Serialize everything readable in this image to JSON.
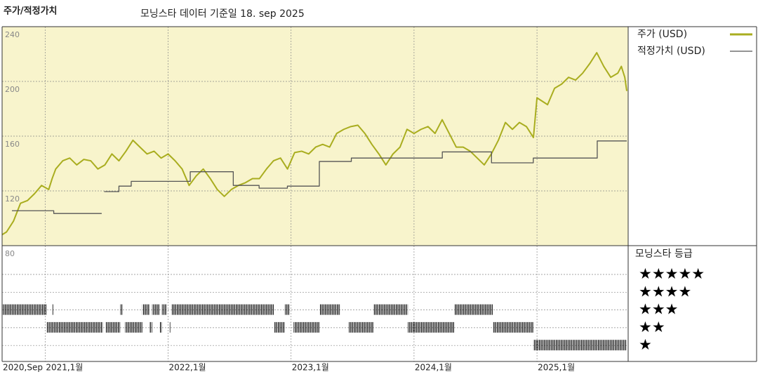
{
  "chart_data": {
    "type": "line",
    "title": "주가/적정가치",
    "subtitle": "모닝스타 데이터 기준일 18. sep 2025",
    "xlim": [
      2020.65,
      2025.73
    ],
    "xticks": [
      {
        "value": 2020.65,
        "label": "2020,Sep"
      },
      {
        "value": 2021,
        "label": "2021,1월"
      },
      {
        "value": 2022,
        "label": "2022,1월"
      },
      {
        "value": 2023,
        "label": "2023,1월"
      },
      {
        "value": 2024,
        "label": "2024,1월"
      },
      {
        "value": 2025,
        "label": "2025,1월"
      }
    ],
    "ylim": [
      80,
      240
    ],
    "yticks": [
      80,
      120,
      160,
      200,
      240
    ],
    "grid": true,
    "series": [
      {
        "name": "주가 (USD)",
        "color": "#a9ad1f",
        "x": [
          2020.65,
          2020.686,
          2020.743,
          2020.8,
          2020.857,
          2020.914,
          2020.971,
          2021.029,
          2021.057,
          2021.086,
          2021.143,
          2021.2,
          2021.257,
          2021.314,
          2021.371,
          2021.429,
          2021.486,
          2021.543,
          2021.6,
          2021.657,
          2021.714,
          2021.771,
          2021.829,
          2021.886,
          2021.943,
          2022.0,
          2022.057,
          2022.114,
          2022.171,
          2022.229,
          2022.286,
          2022.343,
          2022.4,
          2022.457,
          2022.514,
          2022.571,
          2022.629,
          2022.686,
          2022.743,
          2022.8,
          2022.857,
          2022.914,
          2022.971,
          2023.029,
          2023.086,
          2023.143,
          2023.2,
          2023.257,
          2023.314,
          2023.371,
          2023.429,
          2023.486,
          2023.543,
          2023.6,
          2023.657,
          2023.714,
          2023.771,
          2023.829,
          2023.886,
          2023.943,
          2024.0,
          2024.057,
          2024.114,
          2024.171,
          2024.229,
          2024.286,
          2024.343,
          2024.4,
          2024.457,
          2024.514,
          2024.571,
          2024.629,
          2024.686,
          2024.743,
          2024.8,
          2024.857,
          2024.914,
          2024.971,
          2025.0,
          2025.086,
          2025.143,
          2025.2,
          2025.257,
          2025.314,
          2025.371,
          2025.429,
          2025.486,
          2025.543,
          2025.6,
          2025.657,
          2025.686,
          2025.714,
          2025.73
        ],
        "values": [
          88,
          90,
          98,
          111,
          113,
          118,
          124,
          121,
          129,
          136,
          142,
          144,
          139,
          143,
          142,
          136,
          139,
          147,
          142,
          149,
          157,
          152,
          147,
          149,
          144,
          147,
          142,
          136,
          124,
          131,
          136,
          129,
          121,
          116,
          121,
          124,
          126,
          129,
          129,
          136,
          142,
          144,
          136,
          148,
          149,
          147,
          152,
          154,
          152,
          162,
          165,
          167,
          168,
          162,
          154,
          147,
          139,
          147,
          152,
          165,
          162,
          165,
          167,
          162,
          172,
          162,
          152,
          152,
          149,
          144,
          139,
          147,
          157,
          170,
          165,
          170,
          167,
          159,
          188,
          183,
          195,
          198,
          203,
          201,
          206,
          213,
          221,
          211,
          203,
          206,
          211,
          203,
          193
        ]
      },
      {
        "name": "적정가치 (USD)",
        "color": "#555555",
        "step": true,
        "x": [
          2020.73,
          2021.07,
          2021.46,
          2021.47,
          2021.48,
          2021.6,
          2021.7,
          2022.18,
          2022.53,
          2022.74,
          2022.97,
          2023.23,
          2023.49,
          2024.23,
          2024.63,
          2024.97,
          2025.49,
          2025.73
        ],
        "values": [
          105.5,
          103.5,
          103.5,
          null,
          119.5,
          123.5,
          127,
          134,
          124,
          122,
          123.5,
          141.5,
          144,
          148.5,
          140.5,
          144,
          156.5,
          156.5
        ]
      }
    ],
    "rating": {
      "title": "모닝스타 등급",
      "levels": [
        "★★★★★",
        "★★★★",
        "★★★",
        "★★",
        "★"
      ],
      "periods": [
        {
          "start": 2020.65,
          "end": 2021.01,
          "stars": 3
        },
        {
          "start": 2021.06,
          "end": 2021.07,
          "stars": 3
        },
        {
          "start": 2021.61,
          "end": 2021.63,
          "stars": 3
        },
        {
          "start": 2021.79,
          "end": 2021.85,
          "stars": 3
        },
        {
          "start": 2021.87,
          "end": 2021.93,
          "stars": 3
        },
        {
          "start": 2021.95,
          "end": 2021.99,
          "stars": 3
        },
        {
          "start": 2022.03,
          "end": 2022.86,
          "stars": 3
        },
        {
          "start": 2022.95,
          "end": 2022.99,
          "stars": 3
        },
        {
          "start": 2023.23,
          "end": 2023.4,
          "stars": 3
        },
        {
          "start": 2023.67,
          "end": 2023.95,
          "stars": 3
        },
        {
          "start": 2024.33,
          "end": 2024.64,
          "stars": 3
        },
        {
          "start": 2021.01,
          "end": 2021.47,
          "stars": 2
        },
        {
          "start": 2021.49,
          "end": 2021.61,
          "stars": 2
        },
        {
          "start": 2021.65,
          "end": 2021.79,
          "stars": 2
        },
        {
          "start": 2021.85,
          "end": 2021.87,
          "stars": 2
        },
        {
          "start": 2021.93,
          "end": 2021.95,
          "stars": 2
        },
        {
          "start": 2022.01,
          "end": 2022.02,
          "stars": 2
        },
        {
          "start": 2022.86,
          "end": 2022.95,
          "stars": 2
        },
        {
          "start": 2023.02,
          "end": 2023.23,
          "stars": 2
        },
        {
          "start": 2023.47,
          "end": 2023.67,
          "stars": 2
        },
        {
          "start": 2023.95,
          "end": 2024.33,
          "stars": 2
        },
        {
          "start": 2024.64,
          "end": 2024.97,
          "stars": 2
        },
        {
          "start": 2024.97,
          "end": 2025.73,
          "stars": 1
        }
      ]
    }
  }
}
